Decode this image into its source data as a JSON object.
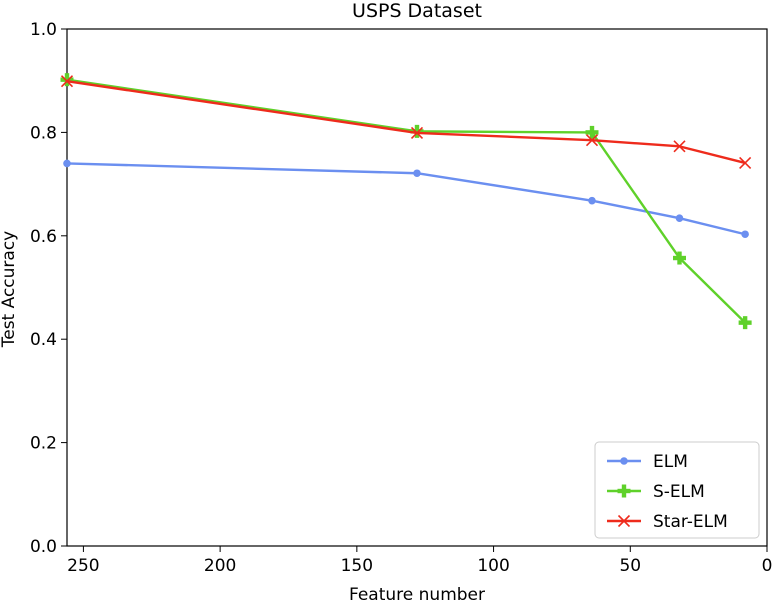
{
  "chart_data": {
    "type": "line",
    "title": "USPS Dataset",
    "xlabel": "Feature number",
    "ylabel": "Test Accuracy",
    "xlim": [
      256,
      0
    ],
    "ylim": [
      0.0,
      1.0
    ],
    "x_inverted": true,
    "xticks": [
      250,
      200,
      150,
      100,
      50,
      0
    ],
    "yticks": [
      0.0,
      0.2,
      0.4,
      0.6,
      0.8,
      1.0
    ],
    "xtick_labels": [
      "250",
      "200",
      "150",
      "100",
      "50",
      "0"
    ],
    "ytick_labels": [
      "0.0",
      "0.2",
      "0.4",
      "0.6",
      "0.8",
      "1.0"
    ],
    "grid": false,
    "legend_position": "lower-right",
    "x": [
      256,
      128,
      64,
      32,
      8
    ],
    "series": [
      {
        "name": "ELM",
        "color": "#6b8ff0",
        "marker": "circle",
        "values": [
          0.74,
          0.721,
          0.668,
          0.634,
          0.603
        ]
      },
      {
        "name": "S-ELM",
        "color": "#5fd12a",
        "marker": "plus",
        "values": [
          0.902,
          0.802,
          0.8,
          0.557,
          0.432
        ]
      },
      {
        "name": "Star-ELM",
        "color": "#ee2b1c",
        "marker": "x",
        "values": [
          0.899,
          0.799,
          0.785,
          0.773,
          0.741
        ]
      }
    ]
  }
}
